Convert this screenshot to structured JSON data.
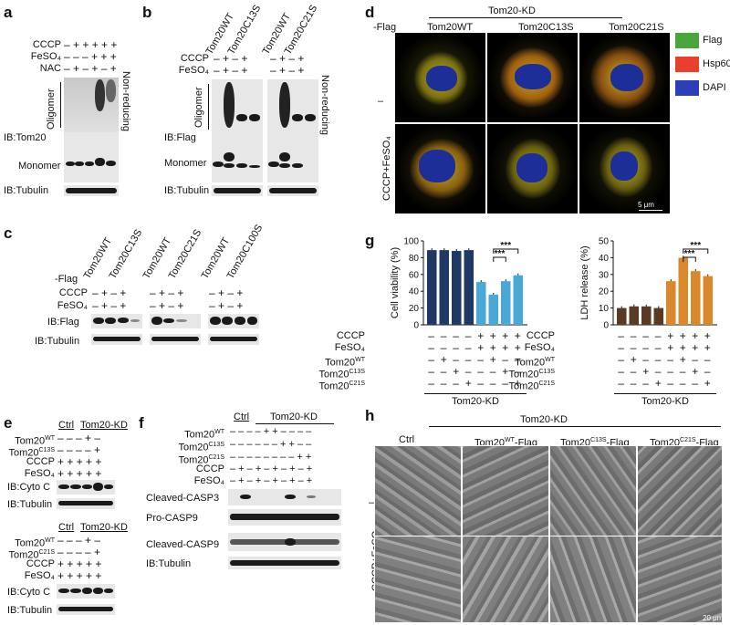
{
  "panels": {
    "a": {
      "letter": "a",
      "rows": [
        {
          "label": "CCCP",
          "values": "– + + + + +"
        },
        {
          "label": "FeSO₄",
          "values": "– – – + + +"
        },
        {
          "label": "NAC",
          "values": "– + – + – +"
        }
      ],
      "oligomer": "Oligomer",
      "ib": "IB:Tom20",
      "monomer": "Monomer",
      "tubulin": "IB:Tubulin",
      "nonreducing": "Non-reducing"
    },
    "b": {
      "letter": "b",
      "cols": [
        "Tom20WT",
        "Tom20C13S",
        "Tom20WT",
        "Tom20C21S"
      ],
      "rows": [
        {
          "label": "CCCP",
          "values_left": "– + – +",
          "values_right": "– + – +"
        },
        {
          "label": "FeSO₄",
          "values_left": "– + – +",
          "values_right": "– + – +"
        }
      ],
      "oligomer": "Oligomer",
      "ib": "IB:Flag",
      "monomer": "Monomer",
      "tubulin": "IB:Tubulin",
      "nonreducing": "Non-reducing"
    },
    "c": {
      "letter": "c",
      "flag": "-Flag",
      "cols": [
        "Tom20WT",
        "Tom20C13S",
        "Tom20WT",
        "Tom20C21S",
        "Tom20WT",
        "Tom20C100S"
      ],
      "rows": [
        {
          "label": "CCCP",
          "values": "– + – +"
        },
        {
          "label": "FeSO₄",
          "values": "– + – +"
        }
      ],
      "ib": "IB:Flag",
      "tubulin": "IB:Tubulin"
    },
    "d": {
      "letter": "d",
      "header": "Tom20-KD",
      "flag": "-Flag",
      "cols": [
        "Tom20WT",
        "Tom20C13S",
        "Tom20C21S"
      ],
      "row1": "–",
      "row2": "CCCP+FeSO₄",
      "legend": [
        {
          "label": "Flag",
          "color": "#4aa63c"
        },
        {
          "label": "Hsp60",
          "color": "#e8402a"
        },
        {
          "label": "DAPI",
          "color": "#2a3fb8"
        }
      ],
      "scale": "5 μm"
    },
    "e": {
      "letter": "e",
      "ctrl": "Ctrl",
      "kd": "Tom20-KD",
      "top_rows": [
        {
          "label": "Tom20WT",
          "values": "– – – + –"
        },
        {
          "label": "Tom20C13S",
          "values": "– – – – +"
        },
        {
          "label": "CCCP",
          "values": "+ + + + +"
        },
        {
          "label": "FeSO₄",
          "values": "+ + + + +"
        }
      ],
      "bottom_rows": [
        {
          "label": "Tom20WT",
          "values": "– – – + –"
        },
        {
          "label": "Tom20C21S",
          "values": "– – – – +"
        },
        {
          "label": "CCCP",
          "values": "+ + + + +"
        },
        {
          "label": "FeSO₄",
          "values": "+ + + + +"
        }
      ],
      "cytoc": "IB:Cyto C",
      "tubulin": "IB:Tubulin"
    },
    "f": {
      "letter": "f",
      "ctrl": "Ctrl",
      "kd": "Tom20-KD",
      "rows": [
        {
          "label": "Tom20WT",
          "values": "– – – – + + – – – –"
        },
        {
          "label": "Tom20C13S",
          "values": "– – – – – – + + – –"
        },
        {
          "label": "Tom20C21S",
          "values": "– – – – – – – – + +"
        },
        {
          "label": "CCCP",
          "values": "– + – + – + – + – +"
        },
        {
          "label": "FeSO₄",
          "values": "– + – + – + – + – +"
        }
      ],
      "blots": [
        "Cleaved-CASP3",
        "Pro-CASP9",
        "Cleaved-CASP9",
        "IB:Tubulin"
      ]
    },
    "g": {
      "letter": "g",
      "kd": "Tom20-KD",
      "rows": [
        {
          "label": "CCCP",
          "values": "– – – – + + + +"
        },
        {
          "label": "FeSO₄",
          "values": "– – – – + + + +"
        },
        {
          "label": "Tom20WT",
          "values": "– + – – – + – –"
        },
        {
          "label": "Tom20C13S",
          "values": "– – + – – – + –"
        },
        {
          "label": "Tom20C21S",
          "values": "– – – + – – – +"
        }
      ],
      "sig": "***"
    },
    "h": {
      "letter": "h",
      "header": "Tom20-KD",
      "cols": [
        "Ctrl",
        "Tom20WT-Flag",
        "Tom20C13S-Flag",
        "Tom20C21S-Flag"
      ],
      "row1": "–",
      "row2": "CCCP+FeSO₄",
      "scale": "20 μm"
    }
  },
  "chart_data": [
    {
      "type": "bar",
      "title": "",
      "xlabel": "",
      "ylabel": "Cell viability (%)",
      "ylim": [
        0,
        100
      ],
      "yticks": [
        0,
        20,
        40,
        60,
        80,
        100
      ],
      "categories": [
        "1",
        "2",
        "3",
        "4",
        "5",
        "6",
        "7",
        "8"
      ],
      "values": [
        89,
        89,
        88,
        89,
        51,
        36,
        52,
        59
      ],
      "colors": [
        "#1f3864",
        "#1f3864",
        "#1f3864",
        "#1f3864",
        "#4aa8d8",
        "#4aa8d8",
        "#4aa8d8",
        "#4aa8d8"
      ],
      "sig": [
        {
          "from": 5,
          "to": 6,
          "label": "***"
        },
        {
          "from": 5,
          "to": 7,
          "label": "***"
        }
      ]
    },
    {
      "type": "bar",
      "title": "",
      "xlabel": "",
      "ylabel": "LDH release (%)",
      "ylim": [
        0,
        50
      ],
      "yticks": [
        0,
        10,
        20,
        30,
        40,
        50
      ],
      "categories": [
        "1",
        "2",
        "3",
        "4",
        "5",
        "6",
        "7",
        "8"
      ],
      "values": [
        10,
        11,
        11,
        10,
        26,
        40,
        32,
        29
      ],
      "colors": [
        "#5a3a22",
        "#5a3a22",
        "#5a3a22",
        "#5a3a22",
        "#d9882c",
        "#d9882c",
        "#d9882c",
        "#d9882c"
      ],
      "sig": [
        {
          "from": 5,
          "to": 6,
          "label": "***"
        },
        {
          "from": 5,
          "to": 7,
          "label": "***"
        }
      ]
    }
  ]
}
